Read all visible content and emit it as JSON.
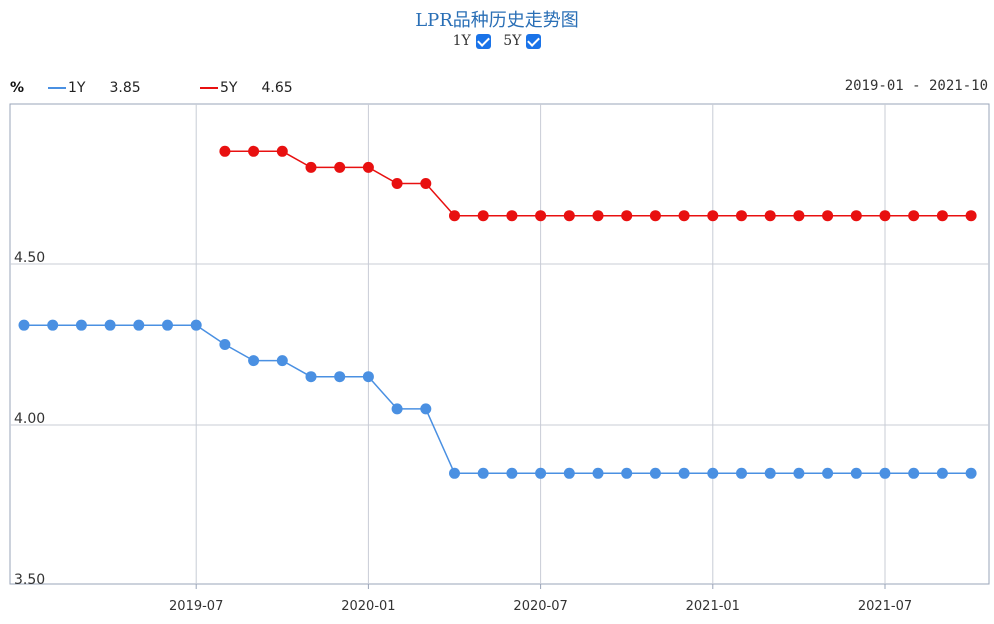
{
  "title": "LPR品种历史走势图",
  "toggles": [
    {
      "label": "1Y",
      "checked": true
    },
    {
      "label": "5Y",
      "checked": true
    }
  ],
  "unit": "%",
  "legend": [
    {
      "name": "1Y",
      "value": "3.85",
      "color": "#4a90e2"
    },
    {
      "name": "5Y",
      "value": "4.65",
      "color": "#e81010"
    }
  ],
  "range_label": "2019-01 - 2021-10",
  "chart_data": {
    "type": "line",
    "x": [
      "2019-01",
      "2019-02",
      "2019-03",
      "2019-04",
      "2019-05",
      "2019-06",
      "2019-07",
      "2019-08",
      "2019-09",
      "2019-10",
      "2019-11",
      "2019-12",
      "2020-01",
      "2020-02",
      "2020-03",
      "2020-04",
      "2020-05",
      "2020-06",
      "2020-07",
      "2020-08",
      "2020-09",
      "2020-10",
      "2020-11",
      "2020-12",
      "2021-01",
      "2021-02",
      "2021-03",
      "2021-04",
      "2021-05",
      "2021-06",
      "2021-07",
      "2021-08",
      "2021-09",
      "2021-10"
    ],
    "series": [
      {
        "name": "1Y",
        "color": "#4a90e2",
        "values": [
          4.31,
          4.31,
          4.31,
          4.31,
          4.31,
          4.31,
          4.31,
          4.25,
          4.2,
          4.2,
          4.15,
          4.15,
          4.15,
          4.05,
          4.05,
          3.85,
          3.85,
          3.85,
          3.85,
          3.85,
          3.85,
          3.85,
          3.85,
          3.85,
          3.85,
          3.85,
          3.85,
          3.85,
          3.85,
          3.85,
          3.85,
          3.85,
          3.85,
          3.85
        ]
      },
      {
        "name": "5Y",
        "color": "#e81010",
        "values": [
          null,
          null,
          null,
          null,
          null,
          null,
          null,
          4.85,
          4.85,
          4.85,
          4.8,
          4.8,
          4.8,
          4.75,
          4.75,
          4.65,
          4.65,
          4.65,
          4.65,
          4.65,
          4.65,
          4.65,
          4.65,
          4.65,
          4.65,
          4.65,
          4.65,
          4.65,
          4.65,
          4.65,
          4.65,
          4.65,
          4.65,
          4.65
        ]
      }
    ],
    "y_ticks": [
      "3.50",
      "4.00",
      "4.50"
    ],
    "x_ticks": [
      "2019-07",
      "2020-01",
      "2020-07",
      "2021-01",
      "2021-07"
    ],
    "ylim": [
      3.5,
      5.0
    ],
    "grid": true
  }
}
